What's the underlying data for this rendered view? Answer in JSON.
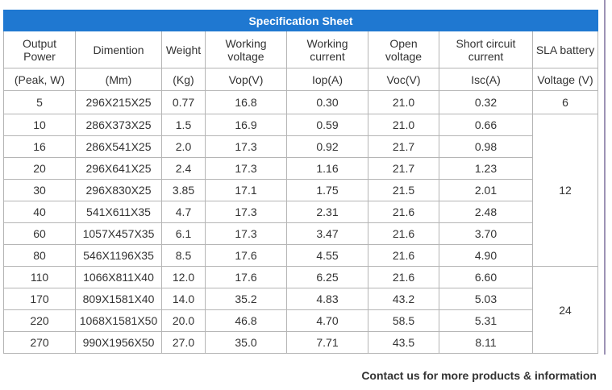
{
  "title": "Specification Sheet",
  "header": [
    "Output Power",
    "Dimention",
    "Weight",
    "Working voltage",
    "Working current",
    "Open voltage",
    "Short circuit current",
    "SLA battery"
  ],
  "units": [
    "(Peak, W)",
    "(Mm)",
    "(Kg)",
    "Vop(V)",
    "Iop(A)",
    "Voc(V)",
    "Isc(A)",
    "Voltage (V)"
  ],
  "rows": [
    [
      "5",
      "296X215X25",
      "0.77",
      "16.8",
      "0.30",
      "21.0",
      "0.32",
      "6"
    ],
    [
      "10",
      "286X373X25",
      "1.5",
      "16.9",
      "0.59",
      "21.0",
      "0.66",
      "12"
    ],
    [
      "16",
      "286X541X25",
      "2.0",
      "17.3",
      "0.92",
      "21.7",
      "0.98"
    ],
    [
      "20",
      "296X641X25",
      "2.4",
      "17.3",
      "1.16",
      "21.7",
      "1.23"
    ],
    [
      "30",
      "296X830X25",
      "3.85",
      "17.1",
      "1.75",
      "21.5",
      "2.01"
    ],
    [
      "40",
      "541X611X35",
      "4.7",
      "17.3",
      "2.31",
      "21.6",
      "2.48"
    ],
    [
      "60",
      "1057X457X35",
      "6.1",
      "17.3",
      "3.47",
      "21.6",
      "3.70"
    ],
    [
      "80",
      "546X1196X35",
      "8.5",
      "17.6",
      "4.55",
      "21.6",
      "4.90"
    ],
    [
      "110",
      "1066X811X40",
      "12.0",
      "17.6",
      "6.25",
      "21.6",
      "6.60",
      "24"
    ],
    [
      "170",
      "809X1581X40",
      "14.0",
      "35.2",
      "4.83",
      "43.2",
      "5.03"
    ],
    [
      "220",
      "1068X1581X50",
      "20.0",
      "46.8",
      "4.70",
      "58.5",
      "5.31"
    ],
    [
      "270",
      "990X1956X50",
      "27.0",
      "35.0",
      "7.71",
      "43.5",
      "8.11"
    ]
  ],
  "footer": "Contact us for more products & information"
}
